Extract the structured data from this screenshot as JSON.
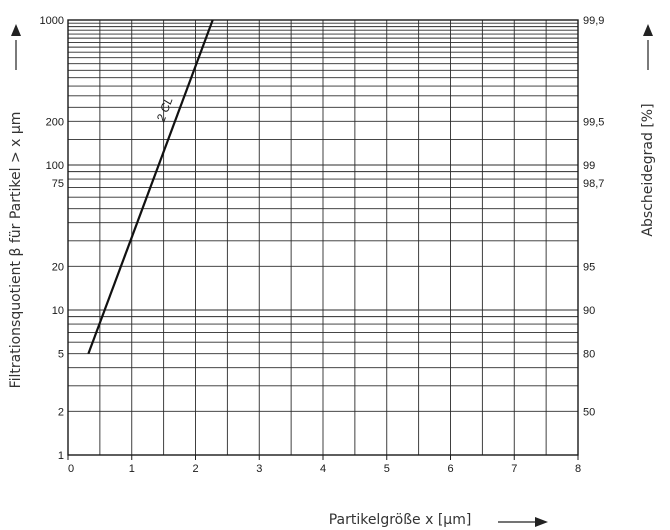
{
  "chart_data": {
    "type": "line",
    "x_axis": {
      "label": "Partikelgröße x [µm]",
      "range": [
        0,
        8
      ],
      "ticks": [
        "0",
        "1",
        "2",
        "3",
        "4",
        "5",
        "6",
        "7",
        "8"
      ]
    },
    "y_axis_left": {
      "label": "Filtrationsquotient β für Partikel > x µm",
      "scale": "log",
      "range": [
        1,
        1000
      ],
      "tick_values": [
        1,
        2,
        5,
        10,
        20,
        75,
        100,
        200,
        1000
      ],
      "tick_labels": [
        "1",
        "2",
        "5",
        "10",
        "20",
        "75",
        "100",
        "200",
        "1000"
      ]
    },
    "y_axis_right": {
      "label": "Abscheidegrad [%]",
      "ticks": [
        {
          "beta": 2,
          "label": "50"
        },
        {
          "beta": 5,
          "label": "80"
        },
        {
          "beta": 10,
          "label": "90"
        },
        {
          "beta": 20,
          "label": "95"
        },
        {
          "beta": 75,
          "label": "98,7"
        },
        {
          "beta": 100,
          "label": "99"
        },
        {
          "beta": 200,
          "label": "99,5"
        },
        {
          "beta": 1000,
          "label": "99,9"
        }
      ]
    },
    "grid": true,
    "series": [
      {
        "name": "2 CL",
        "x": [
          0.32,
          2.27
        ],
        "y": [
          5,
          1000
        ]
      }
    ]
  }
}
